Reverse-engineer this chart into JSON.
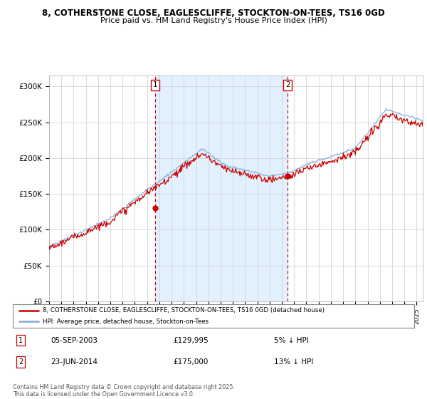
{
  "title_line1": "8, COTHERSTONE CLOSE, EAGLESCLIFFE, STOCKTON-ON-TEES, TS16 0GD",
  "title_line2": "Price paid vs. HM Land Registry's House Price Index (HPI)",
  "ylabel_ticks": [
    "£0",
    "£50K",
    "£100K",
    "£150K",
    "£200K",
    "£250K",
    "£300K"
  ],
  "ytick_values": [
    0,
    50000,
    100000,
    150000,
    200000,
    250000,
    300000
  ],
  "ylim": [
    0,
    315000
  ],
  "xlim_start": 1995.0,
  "xlim_end": 2025.5,
  "sale1_date": 2003.67,
  "sale1_price": 129995,
  "sale2_date": 2014.47,
  "sale2_price": 175000,
  "sale1_text": "05-SEP-2003",
  "sale1_amount": "£129,995",
  "sale1_note": "5% ↓ HPI",
  "sale2_text": "23-JUN-2014",
  "sale2_amount": "£175,000",
  "sale2_note": "13% ↓ HPI",
  "hpi_color": "#7aabda",
  "price_color": "#cc0000",
  "vline_color": "#cc0000",
  "bg_highlight_color": "#ddeeff",
  "grid_color": "#cccccc",
  "legend_label1": "8, COTHERSTONE CLOSE, EAGLESCLIFFE, STOCKTON-ON-TEES, TS16 0GD (detached house)",
  "legend_label2": "HPI: Average price, detached house, Stockton-on-Tees",
  "footer": "Contains HM Land Registry data © Crown copyright and database right 2025.\nThis data is licensed under the Open Government Licence v3.0."
}
